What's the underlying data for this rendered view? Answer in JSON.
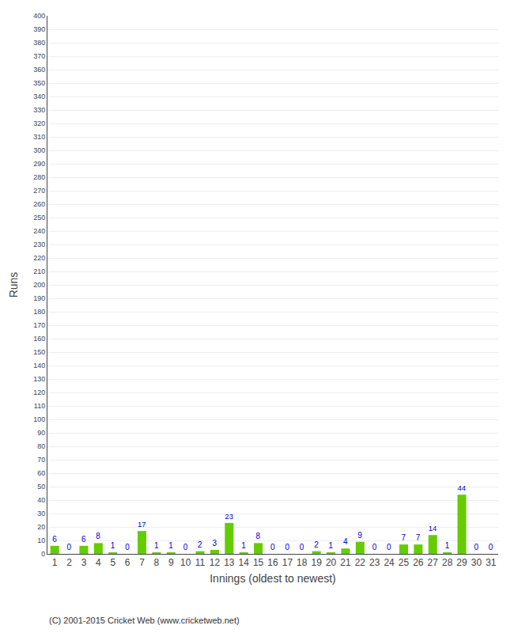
{
  "chart_data": {
    "type": "bar",
    "categories": [
      "1",
      "2",
      "3",
      "4",
      "5",
      "6",
      "7",
      "8",
      "9",
      "10",
      "11",
      "12",
      "13",
      "14",
      "15",
      "16",
      "17",
      "18",
      "19",
      "20",
      "21",
      "22",
      "23",
      "24",
      "25",
      "26",
      "27",
      "28",
      "29",
      "30",
      "31"
    ],
    "values": [
      6,
      0,
      6,
      8,
      1,
      0,
      17,
      1,
      1,
      0,
      2,
      3,
      23,
      1,
      8,
      0,
      0,
      0,
      2,
      1,
      4,
      9,
      0,
      0,
      7,
      7,
      14,
      1,
      44,
      0,
      0
    ],
    "color": "#66cc00",
    "xlabel": "Innings (oldest to newest)",
    "ylabel": "Runs",
    "ylim": [
      0,
      400
    ],
    "yticks": [
      0,
      10,
      20,
      30,
      40,
      50,
      60,
      70,
      80,
      90,
      100,
      110,
      120,
      130,
      140,
      150,
      160,
      170,
      180,
      190,
      200,
      210,
      220,
      230,
      240,
      250,
      260,
      270,
      280,
      290,
      300,
      310,
      320,
      330,
      340,
      350,
      360,
      370,
      380,
      390,
      400
    ],
    "grid": true,
    "data_labels": true,
    "annotations": [
      "(C) 2001-2015 Cricket Web (www.cricketweb.net)"
    ]
  }
}
